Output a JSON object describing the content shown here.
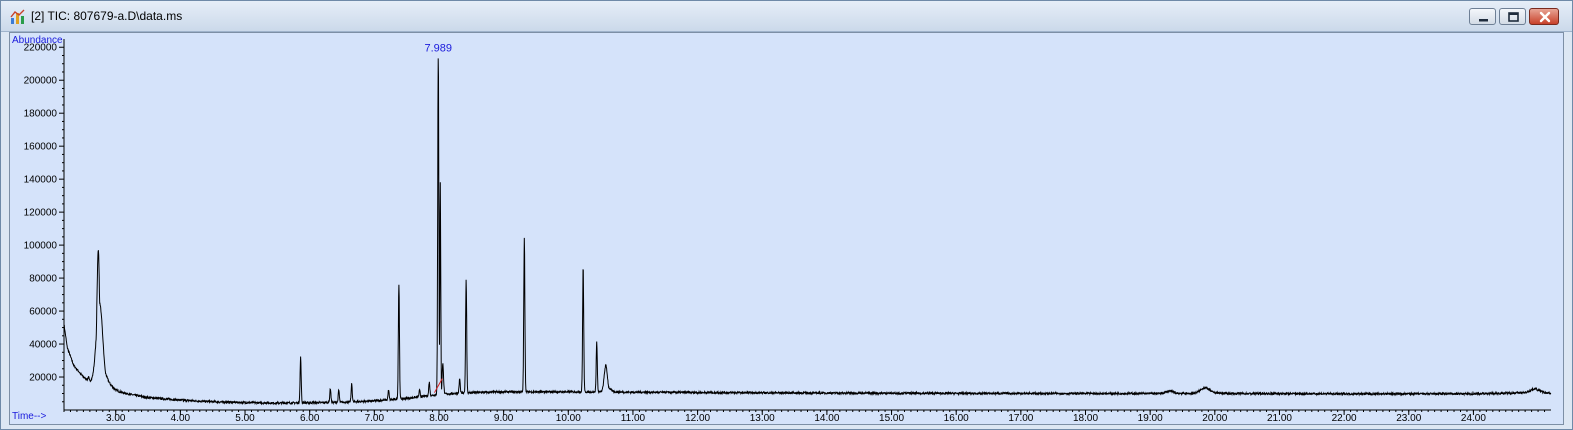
{
  "window": {
    "title": "[2] TIC: 807679-a.D\\data.ms",
    "controls": [
      "minimize",
      "maximize",
      "close"
    ],
    "accent_color": "#c8412a"
  },
  "chart_data": {
    "type": "line",
    "ylabel": "Abundance",
    "xlabel": "Time-->",
    "xlim": [
      2.2,
      25.2
    ],
    "ylim": [
      0,
      225000
    ],
    "x_ticks": [
      "3.00",
      "4.00",
      "5.00",
      "6.00",
      "7.00",
      "8.00",
      "9.00",
      "10.00",
      "11.00",
      "12.00",
      "13.00",
      "14.00",
      "15.00",
      "16.00",
      "17.00",
      "18.00",
      "19.00",
      "20.00",
      "21.00",
      "22.00",
      "23.00",
      "24.00"
    ],
    "x_tick_values": [
      3,
      4,
      5,
      6,
      7,
      8,
      9,
      10,
      11,
      12,
      13,
      14,
      15,
      16,
      17,
      18,
      19,
      20,
      21,
      22,
      23,
      24
    ],
    "y_ticks": [
      "20000",
      "40000",
      "60000",
      "80000",
      "100000",
      "120000",
      "140000",
      "160000",
      "180000",
      "200000",
      "220000"
    ],
    "y_tick_values": [
      20000,
      40000,
      60000,
      80000,
      100000,
      120000,
      140000,
      160000,
      180000,
      200000,
      220000
    ],
    "line_color": "#000000",
    "label_color": "#1a1adc",
    "annotation": {
      "text": "7.989",
      "x": 7.989,
      "y": 215000
    },
    "integration_marker": {
      "x": [
        7.93,
        8.05
      ],
      "y": [
        10500,
        19000
      ],
      "color": "#d62020"
    },
    "baseline": [
      [
        2.2,
        52000
      ],
      [
        2.25,
        38000
      ],
      [
        2.35,
        27000
      ],
      [
        2.5,
        20000
      ],
      [
        2.65,
        16000
      ],
      [
        3.0,
        11000
      ],
      [
        3.5,
        7500
      ],
      [
        4.0,
        6000
      ],
      [
        4.5,
        5000
      ],
      [
        5.0,
        4500
      ],
      [
        5.5,
        4200
      ],
      [
        6.0,
        4400
      ],
      [
        6.5,
        4700
      ],
      [
        7.0,
        5500
      ],
      [
        7.5,
        7000
      ],
      [
        8.0,
        9500
      ],
      [
        8.5,
        10500
      ],
      [
        9.0,
        11000
      ],
      [
        10.0,
        11000
      ],
      [
        11.0,
        10800
      ],
      [
        12.0,
        10600
      ],
      [
        14.0,
        10300
      ],
      [
        16.0,
        10100
      ],
      [
        18.0,
        10000
      ],
      [
        20.0,
        10000
      ],
      [
        22.0,
        9800
      ],
      [
        24.0,
        9800
      ],
      [
        24.8,
        10500
      ],
      [
        24.95,
        13000
      ],
      [
        25.1,
        10500
      ],
      [
        25.2,
        10000
      ]
    ],
    "peaks": [
      {
        "x": 2.58,
        "y": 20000,
        "w": 0.012
      },
      {
        "x": 2.73,
        "y": 97000,
        "w": 0.03
      },
      {
        "x": 2.75,
        "y": 65000,
        "w": 0.07
      },
      {
        "x": 5.86,
        "y": 32000,
        "w": 0.012
      },
      {
        "x": 6.32,
        "y": 13000,
        "w": 0.012
      },
      {
        "x": 6.45,
        "y": 12000,
        "w": 0.012
      },
      {
        "x": 6.65,
        "y": 16000,
        "w": 0.012
      },
      {
        "x": 7.22,
        "y": 12000,
        "w": 0.012
      },
      {
        "x": 7.38,
        "y": 76000,
        "w": 0.012
      },
      {
        "x": 7.7,
        "y": 12000,
        "w": 0.012
      },
      {
        "x": 7.85,
        "y": 17000,
        "w": 0.012
      },
      {
        "x": 7.989,
        "y": 215000,
        "w": 0.012
      },
      {
        "x": 8.02,
        "y": 138000,
        "w": 0.01
      },
      {
        "x": 8.06,
        "y": 28000,
        "w": 0.015
      },
      {
        "x": 8.32,
        "y": 19000,
        "w": 0.012
      },
      {
        "x": 8.42,
        "y": 79000,
        "w": 0.012
      },
      {
        "x": 9.32,
        "y": 104000,
        "w": 0.012
      },
      {
        "x": 10.23,
        "y": 87000,
        "w": 0.012
      },
      {
        "x": 10.44,
        "y": 41000,
        "w": 0.012
      },
      {
        "x": 10.58,
        "y": 27000,
        "w": 0.035
      },
      {
        "x": 19.3,
        "y": 11500,
        "w": 0.08
      },
      {
        "x": 19.85,
        "y": 13500,
        "w": 0.1
      }
    ]
  }
}
